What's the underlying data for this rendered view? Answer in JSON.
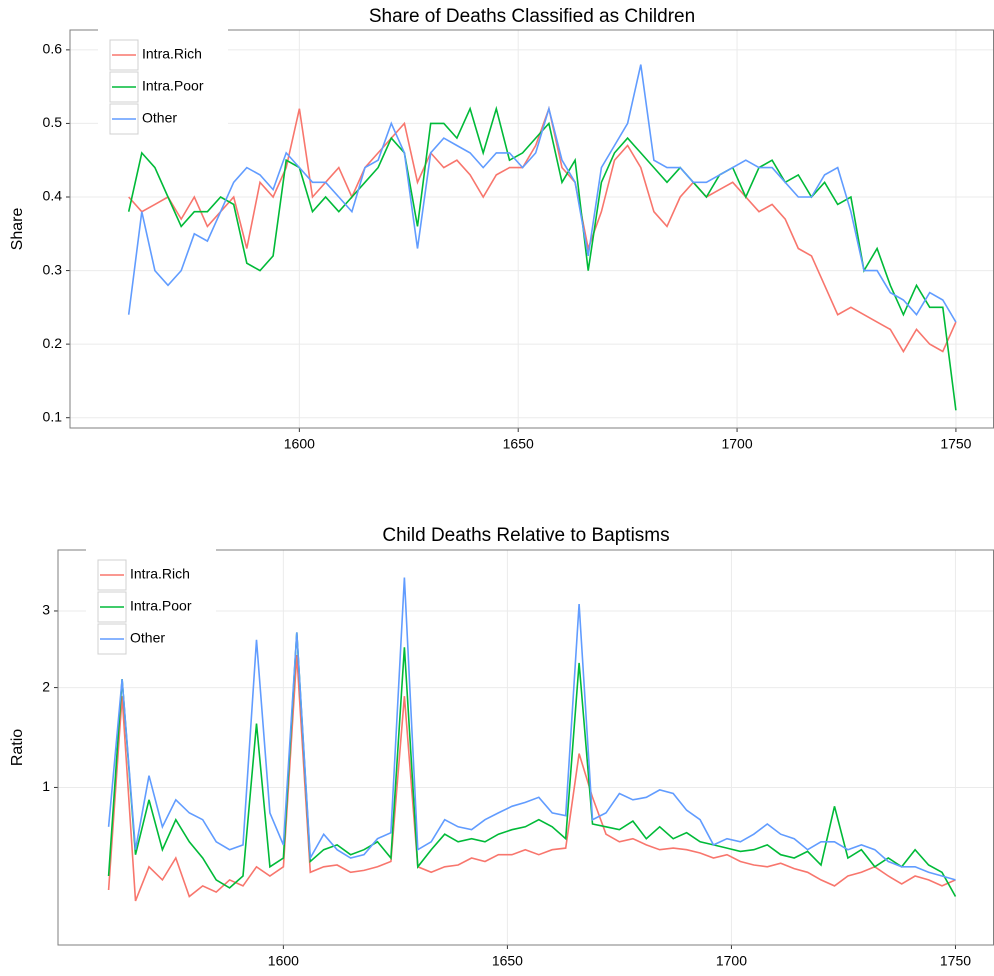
{
  "chart_data": [
    {
      "type": "line",
      "title": "Share of Deaths Classified as Children",
      "y_label": "Share",
      "x": [
        1561,
        1564,
        1567,
        1570,
        1573,
        1576,
        1579,
        1582,
        1585,
        1588,
        1591,
        1594,
        1597,
        1600,
        1603,
        1606,
        1609,
        1612,
        1615,
        1618,
        1621,
        1624,
        1627,
        1630,
        1633,
        1636,
        1639,
        1642,
        1645,
        1648,
        1651,
        1654,
        1657,
        1660,
        1663,
        1666,
        1669,
        1672,
        1675,
        1678,
        1681,
        1684,
        1687,
        1690,
        1693,
        1696,
        1699,
        1702,
        1705,
        1708,
        1711,
        1714,
        1717,
        1720,
        1723,
        1726,
        1729,
        1732,
        1735,
        1738,
        1741,
        1744,
        1747,
        1750
      ],
      "xlim": [
        1547.6,
        1758.7
      ],
      "xticks": [
        1600,
        1650,
        1700,
        1750
      ],
      "ylim": [
        0.086,
        0.627
      ],
      "yticks": [
        0.1,
        0.2,
        0.3,
        0.4,
        0.5,
        0.6
      ],
      "grid": true,
      "legend": "top-left",
      "series": [
        {
          "name": "Intra.Rich",
          "color": "#f8766d",
          "values": [
            0.4,
            0.38,
            0.39,
            0.4,
            0.37,
            0.4,
            0.36,
            0.38,
            0.4,
            0.33,
            0.42,
            0.4,
            0.44,
            0.52,
            0.4,
            0.42,
            0.44,
            0.4,
            0.44,
            0.46,
            0.48,
            0.5,
            0.42,
            0.46,
            0.44,
            0.45,
            0.43,
            0.4,
            0.43,
            0.44,
            0.44,
            0.47,
            0.52,
            0.44,
            0.42,
            0.33,
            0.38,
            0.45,
            0.47,
            0.44,
            0.38,
            0.36,
            0.4,
            0.42,
            0.4,
            0.41,
            0.42,
            0.4,
            0.38,
            0.39,
            0.37,
            0.33,
            0.32,
            0.28,
            0.24,
            0.25,
            0.24,
            0.23,
            0.22,
            0.19,
            0.22,
            0.2,
            0.19,
            0.23
          ]
        },
        {
          "name": "Intra.Poor",
          "color": "#00ba38",
          "values": [
            0.38,
            0.46,
            0.44,
            0.4,
            0.36,
            0.38,
            0.38,
            0.4,
            0.39,
            0.31,
            0.3,
            0.32,
            0.45,
            0.44,
            0.38,
            0.4,
            0.38,
            0.4,
            0.42,
            0.44,
            0.48,
            0.46,
            0.36,
            0.5,
            0.5,
            0.48,
            0.52,
            0.46,
            0.52,
            0.45,
            0.46,
            0.48,
            0.5,
            0.42,
            0.45,
            0.3,
            0.42,
            0.46,
            0.48,
            0.46,
            0.44,
            0.42,
            0.44,
            0.42,
            0.4,
            0.43,
            0.44,
            0.4,
            0.44,
            0.45,
            0.42,
            0.43,
            0.4,
            0.42,
            0.39,
            0.4,
            0.3,
            0.33,
            0.28,
            0.24,
            0.28,
            0.25,
            0.25,
            0.11
          ]
        },
        {
          "name": "Other",
          "color": "#619cff",
          "values": [
            0.24,
            0.38,
            0.3,
            0.28,
            0.3,
            0.35,
            0.34,
            0.38,
            0.42,
            0.44,
            0.43,
            0.41,
            0.46,
            0.44,
            0.42,
            0.42,
            0.4,
            0.38,
            0.44,
            0.45,
            0.5,
            0.46,
            0.33,
            0.46,
            0.48,
            0.47,
            0.46,
            0.44,
            0.46,
            0.46,
            0.44,
            0.46,
            0.52,
            0.45,
            0.42,
            0.32,
            0.44,
            0.47,
            0.5,
            0.58,
            0.45,
            0.44,
            0.44,
            0.42,
            0.42,
            0.43,
            0.44,
            0.45,
            0.44,
            0.44,
            0.42,
            0.4,
            0.4,
            0.43,
            0.44,
            0.38,
            0.3,
            0.3,
            0.27,
            0.26,
            0.24,
            0.27,
            0.26,
            0.23
          ]
        }
      ]
    },
    {
      "type": "line",
      "title": "Child Deaths Relative to Baptisms",
      "y_label": "Ratio",
      "x": [
        1561,
        1564,
        1567,
        1570,
        1573,
        1576,
        1579,
        1582,
        1585,
        1588,
        1591,
        1594,
        1597,
        1600,
        1603,
        1606,
        1609,
        1612,
        1615,
        1618,
        1621,
        1624,
        1627,
        1630,
        1633,
        1636,
        1639,
        1642,
        1645,
        1648,
        1651,
        1654,
        1657,
        1660,
        1663,
        1666,
        1669,
        1672,
        1675,
        1678,
        1681,
        1684,
        1687,
        1690,
        1693,
        1696,
        1699,
        1702,
        1705,
        1708,
        1711,
        1714,
        1717,
        1720,
        1723,
        1726,
        1729,
        1732,
        1735,
        1738,
        1741,
        1744,
        1747,
        1750
      ],
      "xlim": [
        1549.7,
        1758.6
      ],
      "xticks": [
        1600,
        1650,
        1700,
        1750
      ],
      "ylim": [
        0.12,
        3.94
      ],
      "yticks": [
        1,
        2,
        3
      ],
      "y_scale": "sqrt",
      "grid": true,
      "legend": "top-left",
      "series": [
        {
          "name": "Intra.Rich",
          "color": "#f8766d",
          "values": [
            0.33,
            1.9,
            0.28,
            0.45,
            0.38,
            0.5,
            0.3,
            0.35,
            0.32,
            0.38,
            0.35,
            0.45,
            0.4,
            0.45,
            2.4,
            0.42,
            0.45,
            0.46,
            0.42,
            0.43,
            0.45,
            0.48,
            1.9,
            0.45,
            0.42,
            0.45,
            0.46,
            0.5,
            0.48,
            0.52,
            0.52,
            0.55,
            0.52,
            0.55,
            0.56,
            1.3,
            0.92,
            0.65,
            0.6,
            0.62,
            0.58,
            0.55,
            0.56,
            0.55,
            0.53,
            0.5,
            0.52,
            0.48,
            0.46,
            0.45,
            0.47,
            0.44,
            0.42,
            0.38,
            0.35,
            0.4,
            0.42,
            0.45,
            0.4,
            0.36,
            0.4,
            0.38,
            0.35,
            0.38
          ]
        },
        {
          "name": "Intra.Poor",
          "color": "#00ba38",
          "values": [
            0.4,
            2.1,
            0.52,
            0.9,
            0.55,
            0.75,
            0.6,
            0.5,
            0.38,
            0.34,
            0.4,
            1.6,
            0.45,
            0.5,
            2.7,
            0.48,
            0.55,
            0.58,
            0.52,
            0.55,
            0.6,
            0.5,
            2.5,
            0.45,
            0.55,
            0.65,
            0.6,
            0.62,
            0.6,
            0.65,
            0.68,
            0.7,
            0.75,
            0.7,
            0.62,
            2.3,
            0.72,
            0.7,
            0.68,
            0.74,
            0.62,
            0.7,
            0.62,
            0.66,
            0.6,
            0.58,
            0.56,
            0.54,
            0.55,
            0.58,
            0.52,
            0.5,
            0.54,
            0.46,
            0.85,
            0.5,
            0.55,
            0.45,
            0.5,
            0.45,
            0.55,
            0.46,
            0.42,
            0.3
          ]
        },
        {
          "name": "Other",
          "color": "#619cff",
          "values": [
            0.7,
            2.1,
            0.55,
            1.1,
            0.7,
            0.9,
            0.8,
            0.75,
            0.6,
            0.55,
            0.58,
            2.6,
            0.8,
            0.58,
            2.7,
            0.5,
            0.65,
            0.55,
            0.5,
            0.52,
            0.62,
            0.66,
            3.5,
            0.55,
            0.6,
            0.75,
            0.7,
            0.68,
            0.75,
            0.8,
            0.85,
            0.88,
            0.92,
            0.8,
            0.78,
            3.1,
            0.75,
            0.8,
            0.95,
            0.9,
            0.92,
            0.98,
            0.95,
            0.82,
            0.75,
            0.58,
            0.62,
            0.6,
            0.65,
            0.72,
            0.65,
            0.62,
            0.55,
            0.6,
            0.6,
            0.55,
            0.58,
            0.55,
            0.48,
            0.45,
            0.45,
            0.42,
            0.4,
            0.38
          ]
        }
      ]
    }
  ]
}
